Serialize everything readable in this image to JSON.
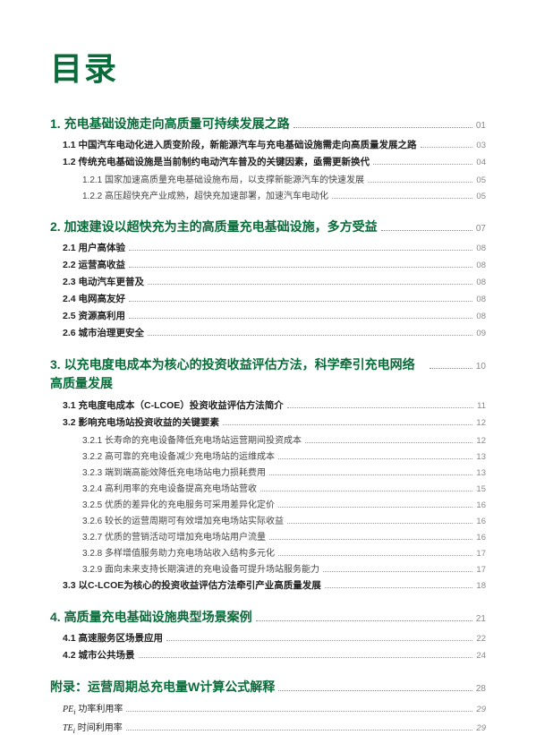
{
  "title": "目录",
  "colors": {
    "primary": "#0a6b3a",
    "text": "#333",
    "muted": "#888",
    "dots": "#999"
  },
  "sections": [
    {
      "num": "1.",
      "title": "充电基础设施走向高质量可持续发展之路",
      "page": "01",
      "items": [
        {
          "label": "1.1 中国汽车电动化进入质变阶段，新能源汽车与充电基础设施需走向高质量发展之路",
          "page": "03",
          "level": 1
        },
        {
          "label": "1.2 传统充电基础设施是当前制约电动汽车普及的关键因素，亟需更新换代",
          "page": "04",
          "level": 1
        },
        {
          "label": "1.2.1 国家加速高质量充电基础设施布局，以支撑新能源汽车的快速发展",
          "page": "05",
          "level": 2
        },
        {
          "label": "1.2.2 高压超快充产业成熟，超快充加速部署，加速汽车电动化",
          "page": "05",
          "level": 2
        }
      ]
    },
    {
      "num": "2.",
      "title": "加速建设以超快充为主的高质量充电基础设施，多方受益",
      "page": "07",
      "items": [
        {
          "label": "2.1 用户高体验",
          "page": "08",
          "level": 1
        },
        {
          "label": "2.2 运营高收益",
          "page": "08",
          "level": 1
        },
        {
          "label": "2.3 电动汽车更普及",
          "page": "08",
          "level": 1
        },
        {
          "label": "2.4 电网高友好",
          "page": "08",
          "level": 1
        },
        {
          "label": "2.5 资源高利用",
          "page": "08",
          "level": 1
        },
        {
          "label": "2.6 城市治理更安全",
          "page": "09",
          "level": 1
        }
      ]
    },
    {
      "num": "3.",
      "title": "以充电度电成本为核心的投资收益评估方法，科学牵引充电网络高质量发展",
      "page": "10",
      "wrap": true,
      "items": [
        {
          "label": "3.1 充电度电成本（C-LCOE）投资收益评估方法简介",
          "page": "11",
          "level": 1
        },
        {
          "label": "3.2 影响充电场站投资收益的关键要素",
          "page": "12",
          "level": 1
        },
        {
          "label": "3.2.1 长寿命的充电设备降低充电场站运营期间投资成本",
          "page": "12",
          "level": 2
        },
        {
          "label": "3.2.2 高可靠的充电设备减少充电场站的运维成本",
          "page": "13",
          "level": 2
        },
        {
          "label": "3.2.3 端到端高能效降低充电场站电力损耗费用",
          "page": "13",
          "level": 2
        },
        {
          "label": "3.2.4 高利用率的充电设备提高充电场站营收",
          "page": "15",
          "level": 2
        },
        {
          "label": "3.2.5 优质的差异化的充电服务可采用差异化定价",
          "page": "16",
          "level": 2
        },
        {
          "label": "3.2.6 较长的运营周期可有效增加充电场站实际收益",
          "page": "16",
          "level": 2
        },
        {
          "label": "3.2.7 优质的营销活动可增加充电场站用户流量",
          "page": "16",
          "level": 2
        },
        {
          "label": "3.2.8 多样增值服务助力充电场站收入结构多元化",
          "page": "17",
          "level": 2
        },
        {
          "label": "3.2.9 面向未来支持长期演进的充电设备可提升场站服务能力",
          "page": "17",
          "level": 2
        },
        {
          "label": "3.3 以C-LCOE为核心的投资收益评估方法牵引产业高质量发展",
          "page": "18",
          "level": 1
        }
      ]
    },
    {
      "num": "4.",
      "title": "高质量充电基础设施典型场景案例",
      "page": "21",
      "items": [
        {
          "label": "4.1 高速服务区场景应用",
          "page": "22",
          "level": 1
        },
        {
          "label": "4.2 城市公共场景",
          "page": "24",
          "level": 1
        }
      ]
    }
  ],
  "appendix": {
    "num": "附录：",
    "title": "运营周期总充电量W计算公式解释",
    "page": "28",
    "items": [
      {
        "prefix": "PE",
        "sub": "i",
        "label": "功率利用率",
        "page": "29"
      },
      {
        "prefix": "TE",
        "sub": "i",
        "label": "时间利用率",
        "page": "29"
      }
    ]
  }
}
